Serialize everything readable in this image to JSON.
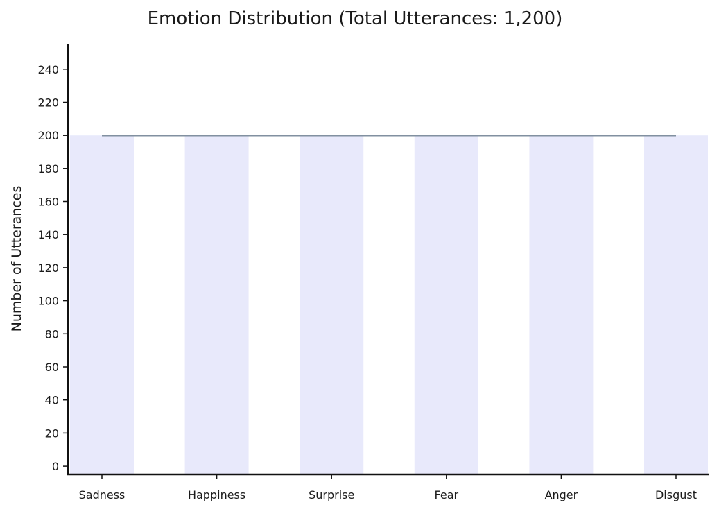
{
  "chart_data": {
    "type": "bar",
    "title": "Emotion Distribution (Total Utterances: 1,200)",
    "xlabel": "",
    "ylabel": "Number of Utterances",
    "categories": [
      "Sadness",
      "Happiness",
      "Surprise",
      "Fear",
      "Anger",
      "Disgust"
    ],
    "values": [
      200,
      200,
      200,
      200,
      200,
      200
    ],
    "reference_line": 200,
    "ylim": [
      -5,
      255
    ],
    "yticks": [
      0,
      20,
      40,
      60,
      80,
      100,
      120,
      140,
      160,
      180,
      200,
      220,
      240
    ],
    "grid": false,
    "legend": "none",
    "colors": {
      "bar": "#e8e9fb",
      "reference_line": "#8190a0",
      "axis": "#111111"
    }
  }
}
